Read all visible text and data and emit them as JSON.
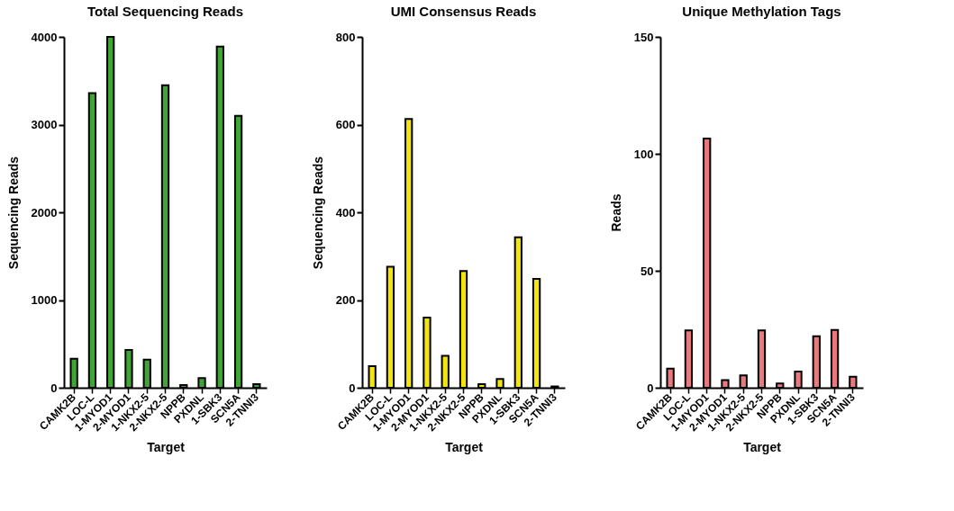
{
  "chart_data": [
    {
      "type": "bar",
      "title": "Total Sequencing Reads",
      "xlabel": "Target",
      "ylabel": "Sequencing  Reads",
      "categories": [
        "CAMK2B",
        "LOC-L",
        "1-MYOD1",
        "2-MYOD1",
        "1-NKX2-5",
        "2-NKX2-5",
        "NPPB",
        "PXDNL",
        "1-SBK3",
        "SCN5A",
        "2-TNNI3"
      ],
      "values": [
        330,
        3360,
        4000,
        430,
        320,
        3450,
        30,
        110,
        3890,
        3100,
        40
      ],
      "color": "#3fa535",
      "ylim": [
        0,
        4000
      ],
      "yticks": [
        0,
        1000,
        2000,
        3000,
        4000
      ]
    },
    {
      "type": "bar",
      "title": "UMI Consensus Reads",
      "xlabel": "Target",
      "ylabel": "Sequencing  Reads",
      "categories": [
        "CAMK2B",
        "LOC-L",
        "1-MYOD1",
        "2-MYOD1",
        "1-NKX2-5",
        "2-NKX2-5",
        "NPPB",
        "PXDNL",
        "1-SBK3",
        "SCN5A",
        "2-TNNI3"
      ],
      "values": [
        49,
        276,
        613,
        160,
        73,
        266,
        8,
        20,
        343,
        248,
        3
      ],
      "color": "#f2e40c",
      "ylim": [
        0,
        800
      ],
      "yticks": [
        0,
        200,
        400,
        600,
        800
      ]
    },
    {
      "type": "bar",
      "title": "Unique Methylation Tags",
      "xlabel": "Target",
      "ylabel": "Reads",
      "categories": [
        "CAMK2B",
        "LOC-L",
        "1-MYOD1",
        "2-MYOD1",
        "1-NKX2-5",
        "2-NKX2-5",
        "NPPB",
        "PXDNL",
        "1-SBK3",
        "SCN5A",
        "2-TNNI3"
      ],
      "values": [
        8.2,
        24.5,
        106.5,
        3.3,
        5.3,
        24.5,
        1.8,
        6.9,
        22,
        24.7,
        4.7
      ],
      "color": "#e8797c",
      "ylim": [
        0,
        150
      ],
      "yticks": [
        0,
        50,
        100,
        150
      ]
    }
  ]
}
